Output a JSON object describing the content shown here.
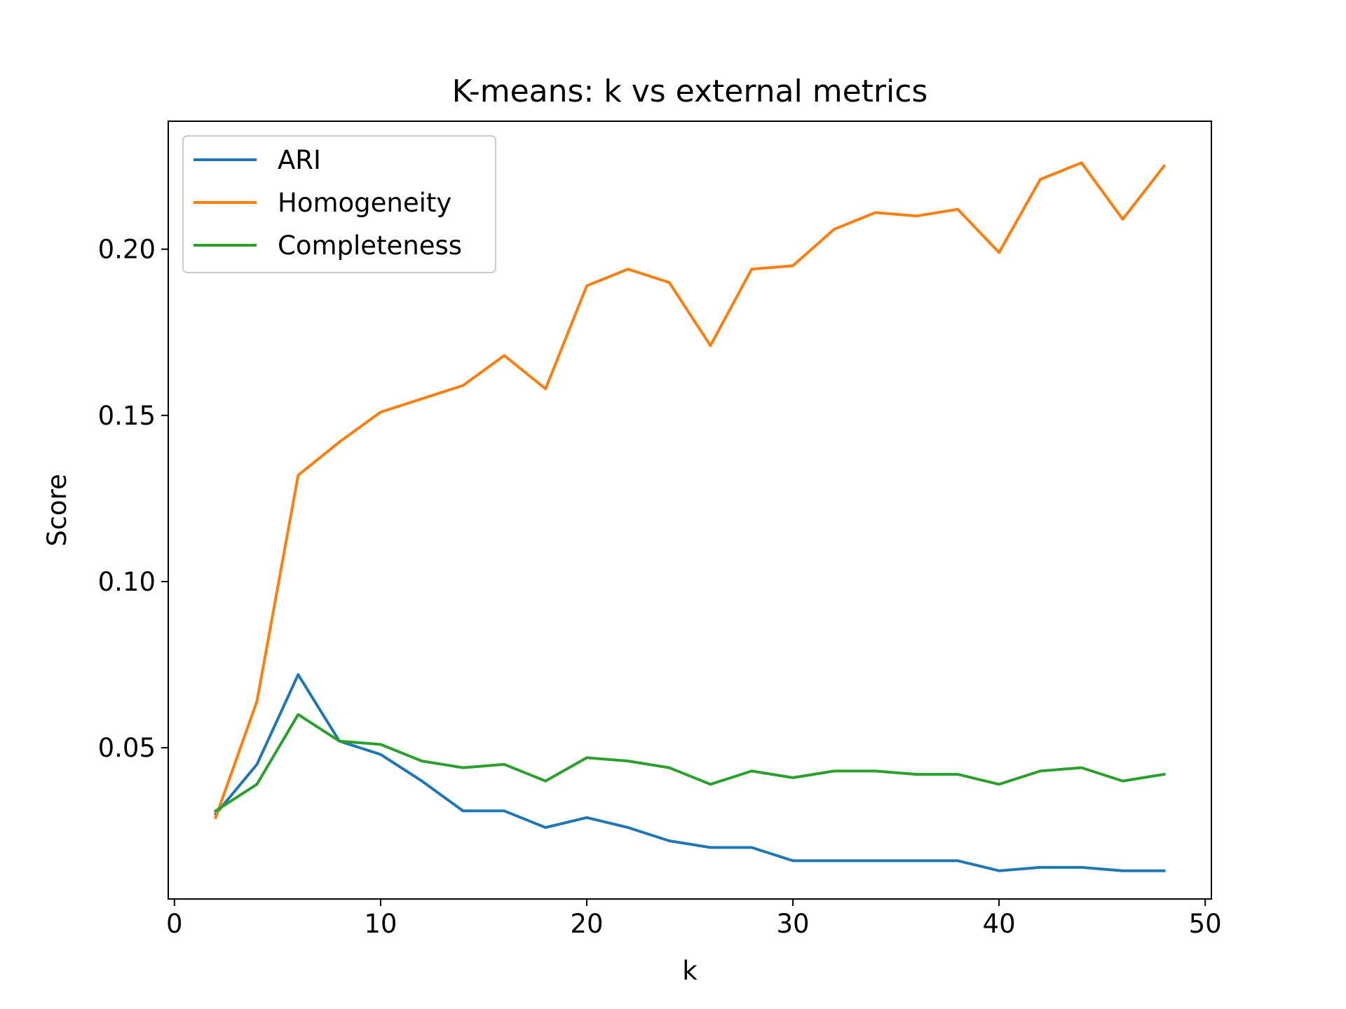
{
  "chart_data": {
    "type": "line",
    "title": "K-means: k vs external metrics",
    "xlabel": "k",
    "ylabel": "Score",
    "xlim": [
      -0.3,
      50.3
    ],
    "ylim": [
      0.0045,
      0.2385
    ],
    "xticks": [
      0,
      10,
      20,
      30,
      40,
      50
    ],
    "xtick_labels": [
      "0",
      "10",
      "20",
      "30",
      "40",
      "50"
    ],
    "yticks": [
      0.05,
      0.1,
      0.15,
      0.2
    ],
    "ytick_labels": [
      "0.05",
      "0.10",
      "0.15",
      "0.20"
    ],
    "grid": false,
    "legend": {
      "position": "upper left"
    },
    "x": [
      2,
      4,
      6,
      8,
      10,
      12,
      14,
      16,
      18,
      20,
      22,
      24,
      26,
      28,
      30,
      32,
      34,
      36,
      38,
      40,
      42,
      44,
      46,
      48
    ],
    "series": [
      {
        "name": "ARI",
        "color": "#1f77b4",
        "values": [
          0.03,
          0.045,
          0.072,
          0.052,
          0.048,
          0.04,
          0.031,
          0.031,
          0.026,
          0.029,
          0.026,
          0.022,
          0.02,
          0.02,
          0.016,
          0.016,
          0.016,
          0.016,
          0.016,
          0.013,
          0.014,
          0.014,
          0.013,
          0.013
        ]
      },
      {
        "name": "Homogeneity",
        "color": "#ff7f0e",
        "values": [
          0.029,
          0.064,
          0.132,
          0.142,
          0.151,
          0.155,
          0.159,
          0.168,
          0.158,
          0.189,
          0.194,
          0.19,
          0.171,
          0.194,
          0.195,
          0.206,
          0.211,
          0.21,
          0.212,
          0.199,
          0.221,
          0.226,
          0.209,
          0.225
        ]
      },
      {
        "name": "Completeness",
        "color": "#2ca02c",
        "values": [
          0.031,
          0.039,
          0.06,
          0.052,
          0.051,
          0.046,
          0.044,
          0.045,
          0.04,
          0.047,
          0.046,
          0.044,
          0.039,
          0.043,
          0.041,
          0.043,
          0.043,
          0.042,
          0.042,
          0.039,
          0.043,
          0.044,
          0.04,
          0.042
        ]
      }
    ]
  }
}
